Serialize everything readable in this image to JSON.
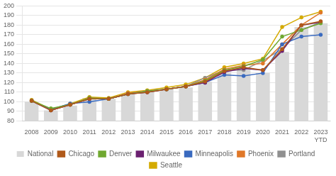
{
  "chart_data": {
    "type": "bar",
    "categories": [
      "2008",
      "2009",
      "2010",
      "2011",
      "2012",
      "2013",
      "2014",
      "2015",
      "2016",
      "2017",
      "2018",
      "2019",
      "2020",
      "2021",
      "2022",
      "2023\nYTD"
    ],
    "series": [
      {
        "name": "National",
        "type": "bar",
        "color": "#d8d8d8",
        "values": [
          100,
          91,
          96,
          104,
          103,
          108,
          111,
          113,
          115,
          121,
          131,
          135,
          130,
          152,
          178,
          182
        ]
      },
      {
        "name": "Chicago",
        "type": "line",
        "marker": "circle",
        "color": "#b05a1a",
        "values": [
          101,
          91,
          97,
          103,
          103,
          108,
          110,
          113,
          116,
          121,
          132,
          136,
          133,
          155,
          180,
          184
        ]
      },
      {
        "name": "Denver",
        "type": "line",
        "marker": "circle",
        "color": "#70a830",
        "values": [
          101,
          93,
          97,
          104,
          103,
          108,
          111,
          113,
          116,
          122,
          133,
          137,
          144,
          168,
          175,
          182
        ]
      },
      {
        "name": "Milwaukee",
        "type": "line",
        "marker": "circle",
        "color": "#6b2070",
        "values": [
          101,
          91,
          97,
          103,
          103,
          108,
          110,
          113,
          116,
          120,
          131,
          135,
          133,
          153,
          180,
          183
        ]
      },
      {
        "name": "Minneapolis",
        "type": "line",
        "marker": "circle",
        "color": "#3a6abf",
        "values": [
          101,
          92,
          98,
          100,
          103,
          108,
          111,
          113,
          116,
          120,
          128,
          127,
          130,
          160,
          168,
          170
        ]
      },
      {
        "name": "Phoenix",
        "type": "line",
        "marker": "circle",
        "color": "#e07828",
        "values": [
          101,
          92,
          97,
          104,
          103,
          109,
          111,
          113,
          116,
          123,
          134,
          138,
          140,
          160,
          180,
          193
        ]
      },
      {
        "name": "Portland",
        "type": "line",
        "marker": "circle",
        "color": "#909090",
        "values": [
          101,
          91,
          97,
          103,
          103,
          108,
          110,
          113,
          116,
          125,
          133,
          133,
          143,
          155,
          175,
          183
        ]
      },
      {
        "name": "Seattle",
        "type": "line",
        "marker": "circle",
        "color": "#d4aa00",
        "values": [
          102,
          92,
          98,
          105,
          104,
          110,
          112,
          115,
          118,
          125,
          136,
          140,
          145,
          178,
          188,
          194
        ]
      }
    ],
    "ylim": [
      80,
      200
    ],
    "yticks": [
      80,
      90,
      100,
      110,
      120,
      130,
      140,
      150,
      160,
      170,
      180,
      190,
      200
    ],
    "grid": "y",
    "legend": "bottom"
  }
}
